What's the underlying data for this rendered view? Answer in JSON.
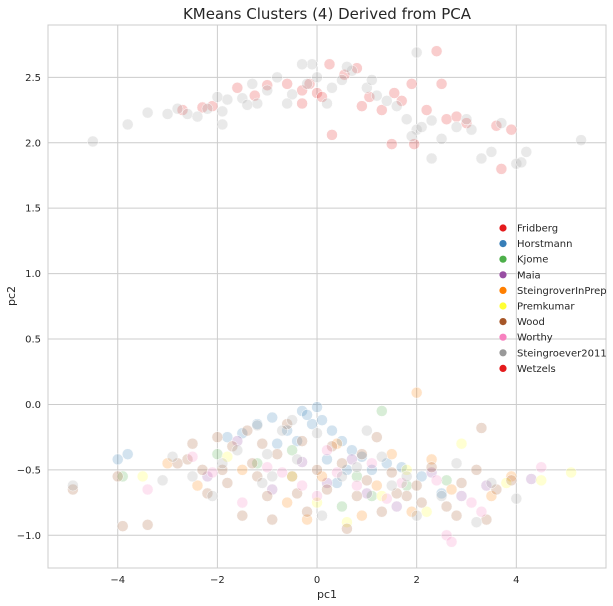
{
  "chart_data": {
    "type": "scatter",
    "title": "KMeans Clusters (4) Derived from PCA",
    "xlabel": "pc1",
    "ylabel": "pc2",
    "xlim": [
      -5.4,
      5.8
    ],
    "ylim": [
      -1.25,
      2.9
    ],
    "xticks": [
      -4,
      -2,
      0,
      2,
      4
    ],
    "yticks": [
      -1.0,
      -0.5,
      0.0,
      0.5,
      1.0,
      1.5,
      2.0,
      2.5
    ],
    "xtick_labels": [
      "−4",
      "−2",
      "0",
      "2",
      "4"
    ],
    "ytick_labels": [
      "−1.0",
      "−0.5",
      "0.0",
      "0.5",
      "1.0",
      "1.5",
      "2.0",
      "2.5"
    ],
    "grid": true,
    "legend_position": "center-right",
    "series": [
      {
        "name": "Fridberg",
        "color": "#e41a1c",
        "points": [
          [
            -2.7,
            2.25
          ],
          [
            -2.1,
            2.28
          ],
          [
            -1.6,
            2.42
          ],
          [
            -1.25,
            2.36
          ],
          [
            -0.6,
            2.45
          ],
          [
            -0.3,
            2.3
          ],
          [
            -0.15,
            2.45
          ],
          [
            0.0,
            2.38
          ],
          [
            0.25,
            2.6
          ],
          [
            0.55,
            2.52
          ],
          [
            0.8,
            2.57
          ],
          [
            1.05,
            2.35
          ],
          [
            1.3,
            2.25
          ],
          [
            1.55,
            2.38
          ],
          [
            1.7,
            2.32
          ],
          [
            1.9,
            2.45
          ],
          [
            2.2,
            2.25
          ],
          [
            2.4,
            2.7
          ],
          [
            2.5,
            2.45
          ],
          [
            2.6,
            2.18
          ],
          [
            2.8,
            2.2
          ],
          [
            3.0,
            2.15
          ],
          [
            3.6,
            2.13
          ],
          [
            3.9,
            2.1
          ],
          [
            1.5,
            1.99
          ],
          [
            1.95,
            1.99
          ],
          [
            0.3,
            2.06
          ],
          [
            -0.3,
            2.4
          ],
          [
            -1.0,
            2.44
          ],
          [
            -2.3,
            2.27
          ],
          [
            3.7,
            1.8
          ],
          [
            0.1,
            2.35
          ],
          [
            0.9,
            2.28
          ]
        ]
      },
      {
        "name": "Horstmann",
        "color": "#377eb8",
        "points": [
          [
            -1.5,
            -0.22
          ],
          [
            -1.2,
            -0.15
          ],
          [
            -0.9,
            -0.1
          ],
          [
            -0.6,
            -0.2
          ],
          [
            -0.3,
            -0.05
          ],
          [
            -0.1,
            -0.15
          ],
          [
            0.1,
            -0.12
          ],
          [
            0.3,
            -0.2
          ],
          [
            0.5,
            -0.28
          ],
          [
            0.7,
            -0.35
          ],
          [
            0.9,
            -0.4
          ],
          [
            1.1,
            -0.5
          ],
          [
            -0.8,
            -0.3
          ],
          [
            -0.4,
            -0.28
          ],
          [
            0.2,
            -0.42
          ],
          [
            0.6,
            -0.5
          ],
          [
            1.7,
            -0.48
          ],
          [
            2.1,
            -0.55
          ],
          [
            2.5,
            -0.68
          ],
          [
            -3.8,
            -0.38
          ],
          [
            -4.0,
            -0.42
          ],
          [
            -1.8,
            -0.25
          ],
          [
            0.0,
            -0.02
          ],
          [
            -0.2,
            -0.08
          ],
          [
            1.4,
            -0.45
          ],
          [
            0.4,
            -0.6
          ]
        ]
      },
      {
        "name": "Kjome",
        "color": "#4daf4a",
        "points": [
          [
            1.3,
            -0.05
          ],
          [
            -0.5,
            -0.35
          ],
          [
            0.8,
            -0.55
          ],
          [
            1.8,
            -0.62
          ],
          [
            -1.2,
            -0.45
          ],
          [
            2.6,
            -0.58
          ],
          [
            -3.9,
            -0.55
          ],
          [
            0.5,
            -0.78
          ],
          [
            -2.0,
            -0.38
          ],
          [
            1.1,
            -0.7
          ]
        ]
      },
      {
        "name": "Maia",
        "color": "#984ea3",
        "points": [
          [
            -0.9,
            -0.65
          ],
          [
            0.2,
            -0.6
          ],
          [
            1.0,
            -0.68
          ],
          [
            2.3,
            -0.52
          ],
          [
            -1.6,
            -0.28
          ],
          [
            3.4,
            -0.62
          ],
          [
            4.3,
            -0.57
          ],
          [
            -0.3,
            -0.44
          ],
          [
            1.6,
            -0.78
          ],
          [
            -2.2,
            -0.55
          ],
          [
            0.7,
            -0.42
          ],
          [
            2.9,
            -0.7
          ]
        ]
      },
      {
        "name": "SteingroverInPrep",
        "color": "#ff7f00",
        "points": [
          [
            2.0,
            0.09
          ],
          [
            0.1,
            -0.55
          ],
          [
            -0.6,
            -0.75
          ],
          [
            1.2,
            -0.62
          ],
          [
            2.7,
            -0.65
          ],
          [
            3.5,
            -0.7
          ],
          [
            -2.4,
            -0.62
          ],
          [
            0.9,
            -0.85
          ],
          [
            1.9,
            -0.82
          ],
          [
            -1.5,
            -0.5
          ],
          [
            0.4,
            -0.3
          ],
          [
            3.9,
            -0.55
          ],
          [
            -0.2,
            -0.88
          ],
          [
            2.3,
            -0.42
          ],
          [
            -3.0,
            -0.45
          ],
          [
            1.5,
            -0.38
          ]
        ]
      },
      {
        "name": "Premkumar",
        "color": "#ffff33",
        "points": [
          [
            2.9,
            -0.3
          ],
          [
            -0.5,
            -0.55
          ],
          [
            1.3,
            -0.7
          ],
          [
            4.5,
            -0.58
          ],
          [
            5.1,
            -0.52
          ],
          [
            -3.5,
            -0.55
          ],
          [
            0.6,
            -0.9
          ],
          [
            2.2,
            -0.82
          ],
          [
            3.8,
            -0.6
          ],
          [
            -1.8,
            -0.4
          ],
          [
            0.0,
            -0.75
          ],
          [
            1.8,
            -0.5
          ]
        ]
      },
      {
        "name": "Wood",
        "color": "#a65628",
        "points": [
          [
            -4.9,
            -0.65
          ],
          [
            -3.9,
            -0.93
          ],
          [
            -3.4,
            -0.92
          ],
          [
            -2.8,
            -0.45
          ],
          [
            -2.5,
            -0.3
          ],
          [
            -2.2,
            -0.68
          ],
          [
            -1.9,
            -0.5
          ],
          [
            -1.7,
            -0.32
          ],
          [
            -1.5,
            -0.85
          ],
          [
            -1.2,
            -0.55
          ],
          [
            -1.0,
            -0.7
          ],
          [
            -0.8,
            -0.38
          ],
          [
            -0.5,
            -0.55
          ],
          [
            -0.2,
            -0.82
          ],
          [
            0.0,
            -0.5
          ],
          [
            0.2,
            -0.65
          ],
          [
            0.5,
            -0.45
          ],
          [
            0.8,
            -0.7
          ],
          [
            1.0,
            -0.58
          ],
          [
            1.3,
            -0.82
          ],
          [
            1.5,
            -0.52
          ],
          [
            1.8,
            -0.7
          ],
          [
            2.0,
            -0.62
          ],
          [
            2.3,
            -0.48
          ],
          [
            2.6,
            -0.78
          ],
          [
            2.9,
            -0.6
          ],
          [
            3.2,
            -0.5
          ],
          [
            3.4,
            -0.88
          ],
          [
            3.6,
            -0.65
          ],
          [
            3.9,
            -0.58
          ],
          [
            -2.0,
            -0.25
          ],
          [
            -1.4,
            -0.2
          ],
          [
            -0.6,
            -0.15
          ],
          [
            -2.6,
            -0.42
          ],
          [
            -1.1,
            -0.3
          ],
          [
            -0.3,
            -0.28
          ],
          [
            0.3,
            -0.32
          ],
          [
            1.2,
            -0.25
          ],
          [
            -1.8,
            -0.6
          ],
          [
            -0.9,
            -0.88
          ],
          [
            0.6,
            -0.95
          ],
          [
            1.6,
            -0.68
          ],
          [
            2.8,
            -0.85
          ],
          [
            3.3,
            -0.18
          ],
          [
            -4.0,
            -0.55
          ],
          [
            -2.3,
            -0.5
          ],
          [
            -1.3,
            -0.45
          ],
          [
            -0.4,
            -0.68
          ],
          [
            0.9,
            -0.38
          ],
          [
            2.1,
            -0.75
          ]
        ]
      },
      {
        "name": "Worthy",
        "color": "#f781bf",
        "points": [
          [
            -3.4,
            -0.65
          ],
          [
            -2.1,
            -0.52
          ],
          [
            -1.0,
            -0.48
          ],
          [
            -0.3,
            -0.62
          ],
          [
            0.4,
            -0.52
          ],
          [
            1.1,
            -0.45
          ],
          [
            1.7,
            -0.6
          ],
          [
            2.4,
            -0.58
          ],
          [
            3.1,
            -0.75
          ],
          [
            4.5,
            -0.48
          ],
          [
            -1.5,
            -0.75
          ],
          [
            0.0,
            -0.7
          ],
          [
            0.8,
            -0.62
          ],
          [
            2.6,
            -1.0
          ],
          [
            2.7,
            -1.05
          ],
          [
            -0.7,
            -0.52
          ],
          [
            1.4,
            -0.72
          ],
          [
            3.3,
            -0.82
          ],
          [
            -2.5,
            -0.4
          ],
          [
            0.2,
            -0.35
          ]
        ]
      },
      {
        "name": "Steingroever2011",
        "color": "#999999",
        "points": [
          [
            -4.5,
            2.01
          ],
          [
            -3.8,
            2.14
          ],
          [
            -3.4,
            2.23
          ],
          [
            -2.8,
            2.26
          ],
          [
            -2.6,
            2.22
          ],
          [
            -2.4,
            2.2
          ],
          [
            -2.2,
            2.26
          ],
          [
            -1.9,
            2.24
          ],
          [
            -1.8,
            2.33
          ],
          [
            -1.5,
            2.34
          ],
          [
            -1.3,
            2.45
          ],
          [
            -1.0,
            2.4
          ],
          [
            -0.8,
            2.5
          ],
          [
            -0.5,
            2.37
          ],
          [
            -0.2,
            2.45
          ],
          [
            0.0,
            2.5
          ],
          [
            0.3,
            2.42
          ],
          [
            0.5,
            2.48
          ],
          [
            0.7,
            2.55
          ],
          [
            1.0,
            2.42
          ],
          [
            1.2,
            2.36
          ],
          [
            1.4,
            2.32
          ],
          [
            1.6,
            2.28
          ],
          [
            1.8,
            2.18
          ],
          [
            2.0,
            2.1
          ],
          [
            2.3,
            2.17
          ],
          [
            2.5,
            2.03
          ],
          [
            2.8,
            2.12
          ],
          [
            3.0,
            2.18
          ],
          [
            3.3,
            1.88
          ],
          [
            3.5,
            1.93
          ],
          [
            3.7,
            2.15
          ],
          [
            4.0,
            1.84
          ],
          [
            4.2,
            1.93
          ],
          [
            5.3,
            2.02
          ],
          [
            2.0,
            2.69
          ],
          [
            2.3,
            1.88
          ],
          [
            -1.9,
            2.14
          ],
          [
            -0.6,
            2.3
          ],
          [
            -1.2,
            2.3
          ],
          [
            -0.1,
            2.6
          ],
          [
            0.6,
            2.58
          ],
          [
            1.1,
            2.48
          ],
          [
            -2.0,
            2.35
          ],
          [
            3.1,
            2.1
          ],
          [
            1.9,
            2.05
          ],
          [
            0.2,
            2.3
          ],
          [
            -3.0,
            2.22
          ],
          [
            4.1,
            1.85
          ],
          [
            -0.3,
            2.6
          ],
          [
            -1.4,
            2.29
          ],
          [
            2.1,
            2.12
          ],
          [
            -2.5,
            -0.55
          ],
          [
            -1.6,
            -0.35
          ],
          [
            -1.1,
            -0.6
          ],
          [
            -0.4,
            -0.42
          ],
          [
            0.5,
            -0.55
          ],
          [
            1.5,
            -0.62
          ],
          [
            2.5,
            -0.7
          ],
          [
            3.2,
            -0.9
          ],
          [
            -3.1,
            -0.58
          ],
          [
            0.1,
            -0.85
          ],
          [
            2.0,
            -0.85
          ],
          [
            1.0,
            -0.2
          ],
          [
            -0.7,
            -0.2
          ],
          [
            -2.9,
            -0.4
          ],
          [
            3.5,
            -0.6
          ],
          [
            4.0,
            -0.72
          ],
          [
            -1.9,
            -0.45
          ],
          [
            0.8,
            -0.48
          ],
          [
            -0.9,
            -0.55
          ],
          [
            1.8,
            -0.55
          ],
          [
            -2.1,
            -0.7
          ],
          [
            2.8,
            -0.45
          ],
          [
            -1.2,
            -0.16
          ],
          [
            -0.5,
            -0.12
          ],
          [
            0.0,
            -0.22
          ],
          [
            -1.0,
            -0.38
          ],
          [
            1.3,
            -0.4
          ],
          [
            -4.9,
            -0.62
          ]
        ]
      },
      {
        "name": "Wetzels",
        "color": "#e41a1c",
        "points": []
      }
    ]
  }
}
